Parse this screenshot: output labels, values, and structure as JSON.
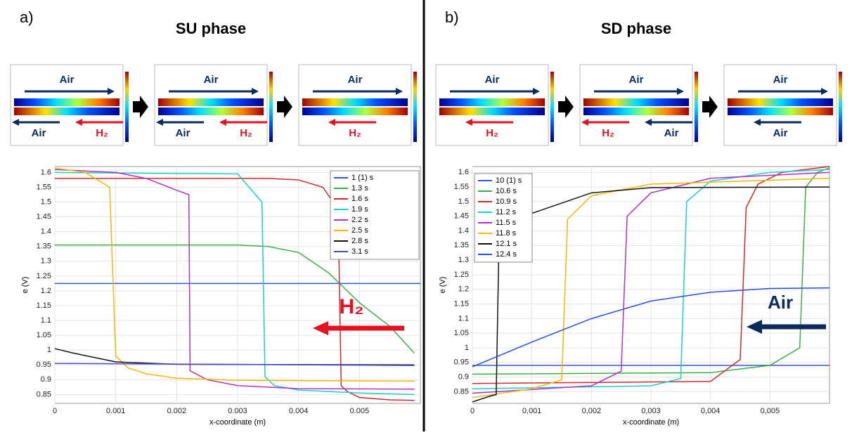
{
  "chart_data": [
    {
      "type": "line",
      "panel": "a)",
      "title": "SU phase",
      "xlabel": "x-coordinate (m)",
      "ylabel": "e (V)",
      "xlim": [
        0,
        0.006
      ],
      "ylim": [
        0.82,
        1.62
      ],
      "xticks": [
        0,
        0.001,
        0.002,
        0.003,
        0.004,
        0.005
      ],
      "yticks": [
        0.85,
        0.9,
        0.95,
        1,
        1.05,
        1.1,
        1.15,
        1.2,
        1.25,
        1.3,
        1.35,
        1.4,
        1.45,
        1.5,
        1.55,
        1.6
      ],
      "grid": true,
      "legend": "top-right",
      "annotation": {
        "text": "H₂",
        "color": "#e8101e"
      },
      "insets": [
        {
          "top": "Air",
          "bottom": [
            "Air",
            "H₂"
          ]
        },
        {
          "top": "Air",
          "bottom": [
            "Air",
            "H₂"
          ]
        },
        {
          "top": "Air",
          "bottom": [
            "H₂"
          ]
        }
      ],
      "series": [
        {
          "name": "1 (1) s",
          "color": "#3355dd",
          "x": [
            0,
            0.006
          ],
          "values": [
            1.225,
            1.225
          ]
        },
        {
          "name": "1.3 s",
          "color": "#3cb043",
          "x": [
            0,
            0.003,
            0.0035,
            0.004,
            0.0045,
            0.0047,
            0.005,
            0.0055,
            0.0059
          ],
          "values": [
            1.355,
            1.355,
            1.35,
            1.33,
            1.26,
            1.22,
            1.16,
            1.08,
            0.99
          ]
        },
        {
          "name": "1.6 s",
          "color": "#d62728",
          "x": [
            0,
            0.0035,
            0.004,
            0.0044,
            0.00465,
            0.0047,
            0.0048,
            0.005,
            0.0055,
            0.0059
          ],
          "values": [
            1.58,
            1.58,
            1.575,
            1.55,
            1.475,
            0.88,
            0.86,
            0.84,
            0.832,
            0.83
          ]
        },
        {
          "name": "1.9 s",
          "color": "#17d0d0",
          "x": [
            0,
            0.003,
            0.0034,
            0.00345,
            0.0036,
            0.004,
            0.005,
            0.0059
          ],
          "values": [
            1.6,
            1.595,
            1.5,
            0.91,
            0.88,
            0.865,
            0.855,
            0.85
          ]
        },
        {
          "name": "2.2 s",
          "color": "#b530c8",
          "x": [
            0,
            0.001,
            0.0015,
            0.002,
            0.0022,
            0.00222,
            0.0025,
            0.003,
            0.004,
            0.0059
          ],
          "values": [
            1.61,
            1.6,
            1.58,
            1.54,
            1.525,
            0.93,
            0.9,
            0.88,
            0.87,
            0.868
          ]
        },
        {
          "name": "2.5 s",
          "color": "#f5b800",
          "x": [
            0,
            0.0005,
            0.0009,
            0.001,
            0.0012,
            0.0015,
            0.002,
            0.003,
            0.0059
          ],
          "values": [
            1.615,
            1.6,
            1.55,
            0.98,
            0.94,
            0.92,
            0.905,
            0.898,
            0.895
          ]
        },
        {
          "name": "2.8 s",
          "color": "#111111",
          "x": [
            0,
            0.0003,
            0.001,
            0.002,
            0.0059
          ],
          "values": [
            1.005,
            0.99,
            0.96,
            0.952,
            0.95
          ]
        },
        {
          "name": "3.1 s",
          "color": "#4b4bd6",
          "x": [
            0,
            0.0059
          ],
          "values": [
            0.955,
            0.948
          ]
        }
      ]
    },
    {
      "type": "line",
      "panel": "b)",
      "title": "SD phase",
      "xlabel": "x-coordinate (m)",
      "ylabel": "e (V)",
      "xlim": [
        0,
        0.006
      ],
      "ylim": [
        0.81,
        1.62
      ],
      "xticks": [
        0,
        {
          "value": 0.001,
          "label": "0,001"
        },
        {
          "value": 0.002,
          "label": "0,002"
        },
        {
          "value": 0.003,
          "label": "0,003"
        },
        {
          "value": 0.004,
          "label": "0,004"
        },
        {
          "value": 0.005,
          "label": "0,005"
        }
      ],
      "yticks": [
        0.85,
        0.9,
        0.95,
        1,
        1.05,
        1.1,
        1.15,
        1.2,
        1.25,
        1.3,
        1.35,
        1.4,
        1.45,
        1.5,
        1.55,
        1.6
      ],
      "grid": true,
      "legend": "top-left",
      "annotation": {
        "text": "Air",
        "color": "#0d2a5c"
      },
      "insets": [
        {
          "top": "Air",
          "bottom": [
            "H₂"
          ]
        },
        {
          "top": "Air",
          "bottom": [
            "H₂",
            "Air"
          ]
        },
        {
          "top": "Air",
          "bottom": [
            "Air"
          ]
        }
      ],
      "series": [
        {
          "name": "10 (1) s",
          "color": "#3355dd",
          "x": [
            0,
            0.006
          ],
          "values": [
            0.94,
            0.94
          ]
        },
        {
          "name": "10.6 s",
          "color": "#3cb043",
          "x": [
            0,
            0.004,
            0.005,
            0.0055,
            0.0056,
            0.0058,
            0.006
          ],
          "values": [
            0.91,
            0.915,
            0.94,
            1.0,
            1.55,
            1.6,
            1.615
          ]
        },
        {
          "name": "10.9 s",
          "color": "#d62728",
          "x": [
            0,
            0.004,
            0.0045,
            0.0046,
            0.0048,
            0.0052,
            0.006
          ],
          "values": [
            0.878,
            0.885,
            0.96,
            1.48,
            1.56,
            1.6,
            1.62
          ]
        },
        {
          "name": "11.2 s",
          "color": "#17d0d0",
          "x": [
            0,
            0.003,
            0.0035,
            0.0036,
            0.004,
            0.005,
            0.006
          ],
          "values": [
            0.86,
            0.87,
            0.895,
            1.5,
            1.57,
            1.6,
            1.61
          ]
        },
        {
          "name": "11.5 s",
          "color": "#b530c8",
          "x": [
            0,
            0.002,
            0.0025,
            0.0026,
            0.003,
            0.004,
            0.006
          ],
          "values": [
            0.845,
            0.87,
            0.92,
            1.45,
            1.53,
            1.58,
            1.6
          ]
        },
        {
          "name": "11.8 s",
          "color": "#f5b800",
          "x": [
            0,
            0.001,
            0.0015,
            0.0016,
            0.002,
            0.003,
            0.006
          ],
          "values": [
            0.83,
            0.86,
            0.89,
            1.44,
            1.52,
            1.56,
            1.58
          ]
        },
        {
          "name": "12.1 s",
          "color": "#111111",
          "x": [
            0,
            0.0003,
            0.0004,
            0.00045,
            0.001,
            0.002,
            0.003,
            0.006
          ],
          "values": [
            0.815,
            0.835,
            0.84,
            1.4,
            1.46,
            1.53,
            1.548,
            1.55
          ]
        },
        {
          "name": "12.4 s",
          "color": "#2a4bf0",
          "x": [
            0,
            0.001,
            0.002,
            0.003,
            0.004,
            0.005,
            0.006
          ],
          "values": [
            0.935,
            1.02,
            1.1,
            1.16,
            1.19,
            1.203,
            1.205
          ]
        }
      ]
    }
  ]
}
